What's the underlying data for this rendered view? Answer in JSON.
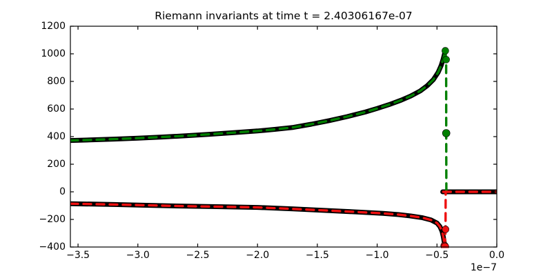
{
  "figure": {
    "background": "#ffffff"
  },
  "chart_data": {
    "type": "line",
    "title": "Riemann invariants at time t = 2.40306167e-07",
    "xlabel": "",
    "ylabel": "",
    "x_offset_label": "1e−7",
    "x_units_multiplier": "1e-7",
    "xlim": [
      -3.564,
      0.0
    ],
    "ylim": [
      -400,
      1200
    ],
    "grid": false,
    "legend": null,
    "xticks": {
      "values": [
        -3.5,
        -3.0,
        -2.5,
        -2.0,
        -1.5,
        -1.0,
        -0.5,
        0.0
      ],
      "labels": [
        "−3.5",
        "−3.0",
        "−2.5",
        "−2.0",
        "−1.5",
        "−1.0",
        "−0.5",
        "0.0"
      ]
    },
    "yticks": {
      "values": [
        -400,
        -200,
        0,
        200,
        400,
        600,
        800,
        1000,
        1200
      ],
      "labels": [
        "−400",
        "−200",
        "0",
        "200",
        "400",
        "600",
        "800",
        "1000",
        "1200"
      ]
    },
    "colors": {
      "upper_series": "#008000",
      "lower_series": "#ee1010",
      "reference": "#000000",
      "axes": "#000000"
    },
    "series": [
      {
        "name": "upper-invariant-reference",
        "color": "#000000",
        "style": "solid",
        "width": 7,
        "points": [
          [
            -3.564,
            372
          ],
          [
            -3.4,
            376
          ],
          [
            -3.2,
            382
          ],
          [
            -3.0,
            389
          ],
          [
            -2.8,
            397
          ],
          [
            -2.6,
            406
          ],
          [
            -2.4,
            417
          ],
          [
            -2.2,
            429
          ],
          [
            -2.0,
            441
          ],
          [
            -1.85,
            453
          ],
          [
            -1.7,
            467
          ],
          [
            -1.55,
            490
          ],
          [
            -1.4,
            516
          ],
          [
            -1.25,
            545
          ],
          [
            -1.1,
            578
          ],
          [
            -1.0,
            604
          ],
          [
            -0.9,
            632
          ],
          [
            -0.8,
            664
          ],
          [
            -0.72,
            694
          ],
          [
            -0.64,
            731
          ],
          [
            -0.58,
            770
          ],
          [
            -0.53,
            813
          ],
          [
            -0.49,
            866
          ],
          [
            -0.465,
            916
          ],
          [
            -0.448,
            962
          ],
          [
            -0.437,
            1000
          ],
          [
            -0.43,
            1022
          ]
        ]
      },
      {
        "name": "lower-invariant-reference",
        "color": "#000000",
        "style": "solid",
        "width": 7,
        "points": [
          [
            -3.564,
            -86
          ],
          [
            -3.2,
            -92
          ],
          [
            -2.9,
            -98
          ],
          [
            -2.6,
            -104
          ],
          [
            -2.3,
            -108
          ],
          [
            -2.0,
            -113
          ],
          [
            -1.7,
            -124
          ],
          [
            -1.4,
            -136
          ],
          [
            -1.15,
            -147
          ],
          [
            -0.95,
            -156
          ],
          [
            -0.82,
            -165
          ],
          [
            -0.72,
            -175
          ],
          [
            -0.62,
            -188
          ],
          [
            -0.55,
            -204
          ],
          [
            -0.5,
            -226
          ],
          [
            -0.475,
            -252
          ],
          [
            -0.458,
            -286
          ],
          [
            -0.447,
            -326
          ],
          [
            -0.44,
            -362
          ],
          [
            -0.434,
            -398
          ]
        ]
      },
      {
        "name": "post-shock-zero-reference",
        "color": "#000000",
        "style": "solid",
        "width": 7,
        "points": [
          [
            -0.452,
            0
          ],
          [
            0,
            0
          ]
        ]
      },
      {
        "name": "upper-invariant-numerical",
        "color": "#008000",
        "style": "dashed",
        "width": 3.4,
        "dash": [
          11,
          8
        ],
        "points": [
          [
            -3.564,
            372
          ],
          [
            -3.4,
            376
          ],
          [
            -3.2,
            382
          ],
          [
            -3.0,
            389
          ],
          [
            -2.8,
            397
          ],
          [
            -2.6,
            406
          ],
          [
            -2.4,
            417
          ],
          [
            -2.2,
            429
          ],
          [
            -2.0,
            441
          ],
          [
            -1.85,
            453
          ],
          [
            -1.7,
            467
          ],
          [
            -1.55,
            490
          ],
          [
            -1.4,
            516
          ],
          [
            -1.25,
            545
          ],
          [
            -1.1,
            578
          ],
          [
            -1.0,
            604
          ],
          [
            -0.9,
            632
          ],
          [
            -0.8,
            664
          ],
          [
            -0.72,
            694
          ],
          [
            -0.64,
            731
          ],
          [
            -0.58,
            770
          ],
          [
            -0.53,
            813
          ],
          [
            -0.49,
            866
          ],
          [
            -0.465,
            916
          ],
          [
            -0.448,
            962
          ],
          [
            -0.437,
            1000
          ],
          [
            -0.43,
            1022
          ],
          [
            -0.4235,
            958
          ],
          [
            -0.4225,
            425
          ],
          [
            -0.4215,
            5
          ]
        ]
      },
      {
        "name": "lower-invariant-numerical",
        "color": "#ee1010",
        "style": "dashed",
        "width": 3.4,
        "dash": [
          11,
          8
        ],
        "points": [
          [
            -3.564,
            -86
          ],
          [
            -3.2,
            -92
          ],
          [
            -2.9,
            -98
          ],
          [
            -2.6,
            -104
          ],
          [
            -2.3,
            -108
          ],
          [
            -2.0,
            -113
          ],
          [
            -1.7,
            -124
          ],
          [
            -1.4,
            -136
          ],
          [
            -1.15,
            -147
          ],
          [
            -0.95,
            -156
          ],
          [
            -0.82,
            -165
          ],
          [
            -0.72,
            -175
          ],
          [
            -0.62,
            -188
          ],
          [
            -0.55,
            -204
          ],
          [
            -0.5,
            -226
          ],
          [
            -0.475,
            -252
          ],
          [
            -0.458,
            -286
          ],
          [
            -0.447,
            -326
          ],
          [
            -0.44,
            -362
          ],
          [
            -0.434,
            -398
          ],
          [
            -0.4285,
            -272
          ],
          [
            -0.4275,
            0
          ]
        ]
      },
      {
        "name": "post-shock-zero-numerical",
        "color": "#ee1010",
        "style": "dashed",
        "width": 3.4,
        "dash": [
          11,
          8
        ],
        "points": [
          [
            -0.448,
            0
          ],
          [
            0,
            0
          ]
        ]
      }
    ],
    "marker_points": [
      {
        "series": "upper-invariant-numerical",
        "color": "#008000",
        "points": [
          [
            -0.43,
            1022,
            5
          ],
          [
            -0.4235,
            958,
            5
          ],
          [
            -0.4225,
            425,
            5.5
          ]
        ]
      },
      {
        "series": "lower-invariant-numerical",
        "color": "#ee1010",
        "points": [
          [
            -0.4285,
            -272,
            5
          ],
          [
            -0.437,
            -392,
            5.5
          ],
          [
            -0.4325,
            -398,
            5.5
          ]
        ]
      }
    ]
  }
}
